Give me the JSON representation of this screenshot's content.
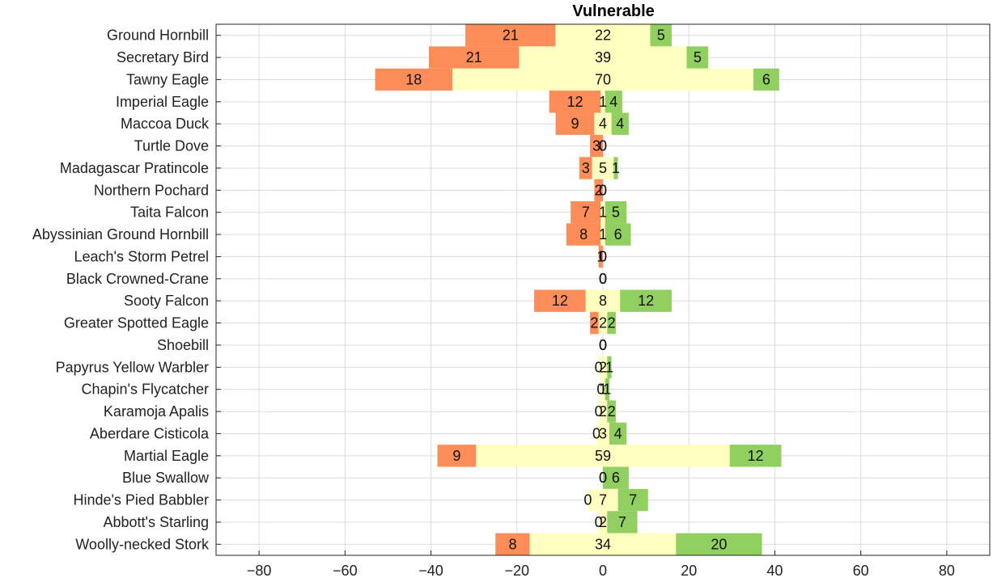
{
  "chart_data": {
    "type": "bar",
    "orientation": "horizontal",
    "stacked": "diverging",
    "title": "Vulnerable",
    "xlabel": "",
    "ylabel": "",
    "xlim": [
      -90,
      90
    ],
    "xticks": [
      -80,
      -60,
      -40,
      -20,
      0,
      20,
      40,
      60,
      80
    ],
    "grid": true,
    "categories": [
      "Ground Hornbill",
      "Secretary Bird",
      "Tawny Eagle",
      "Imperial Eagle",
      "Maccoa Duck",
      "Turtle Dove",
      "Madagascar Pratincole",
      "Northern Pochard",
      "Taita Falcon",
      "Abyssinian Ground Hornbill",
      "Leach's Storm Petrel",
      "Black Crowned-Crane",
      "Sooty Falcon",
      "Greater Spotted Eagle",
      "Shoebill",
      "Papyrus Yellow Warbler",
      "Chapin's Flycatcher",
      "Karamoja Apalis",
      "Aberdare Cisticola",
      "Martial Eagle",
      "Blue Swallow",
      "Hinde's Pied Babbler",
      "Abbott's Starling",
      "Woolly-necked Stork"
    ],
    "series": [
      {
        "color": "#fc8d59",
        "values": [
          21,
          21,
          18,
          12,
          9,
          3,
          3,
          2,
          7,
          8,
          1,
          0,
          12,
          2,
          0,
          0,
          0,
          0,
          0,
          9,
          0,
          0,
          0,
          8
        ]
      },
      {
        "color": "#ffffbf",
        "values": [
          22,
          39,
          70,
          1,
          4,
          0,
          5,
          0,
          1,
          1,
          0,
          0,
          8,
          2,
          0,
          2,
          1,
          2,
          3,
          59,
          0,
          7,
          2,
          34
        ]
      },
      {
        "color": "#91cf60",
        "values": [
          5,
          5,
          6,
          4,
          4,
          0,
          1,
          0,
          5,
          6,
          0,
          0,
          12,
          2,
          0,
          1,
          1,
          2,
          4,
          12,
          6,
          7,
          7,
          20
        ]
      }
    ]
  }
}
